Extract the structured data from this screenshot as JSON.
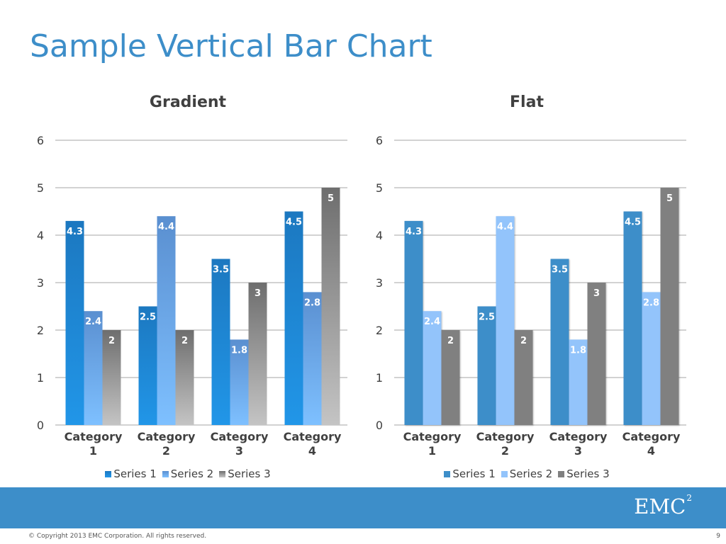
{
  "slide": {
    "title": "Sample Vertical Bar Chart",
    "copyright": "© Copyright 2013 EMC Corporation. All rights reserved.",
    "page_number": "9",
    "logo": {
      "text": "EMC",
      "superscript": "2"
    }
  },
  "colors": {
    "title": "#3d8ec9",
    "footer_band": "#3d8ec9",
    "gridline": "#a6a6a6",
    "axis_text": "#404040",
    "data_label": "#ffffff"
  },
  "chart_data": [
    {
      "type": "bar",
      "title": "Gradient",
      "style": "gradient",
      "categories": [
        [
          "Category",
          "1"
        ],
        [
          "Category",
          "2"
        ],
        [
          "Category",
          "3"
        ],
        [
          "Category",
          "4"
        ]
      ],
      "series": [
        {
          "name": "Series 1",
          "values": [
            4.3,
            2.5,
            3.5,
            4.5
          ],
          "color": "#1c78c0",
          "color_light": "#2196e8"
        },
        {
          "name": "Series 2",
          "values": [
            2.4,
            4.4,
            1.8,
            2.8
          ],
          "color": "#5a8fd0",
          "color_light": "#7ec0ff"
        },
        {
          "name": "Series 3",
          "values": [
            2,
            2,
            3,
            5
          ],
          "color": "#6e6e6e",
          "color_light": "#c4c4c4"
        }
      ],
      "ylim": [
        0,
        6
      ],
      "yticks": [
        0,
        1,
        2,
        3,
        4,
        5,
        6
      ],
      "grid": true,
      "legend": "bottom",
      "data_labels": true
    },
    {
      "type": "bar",
      "title": "Flat",
      "style": "flat",
      "categories": [
        [
          "Category",
          "1"
        ],
        [
          "Category",
          "2"
        ],
        [
          "Category",
          "3"
        ],
        [
          "Category",
          "4"
        ]
      ],
      "series": [
        {
          "name": "Series 1",
          "values": [
            4.3,
            2.5,
            3.5,
            4.5
          ],
          "color": "#3d8ec9"
        },
        {
          "name": "Series 2",
          "values": [
            2.4,
            4.4,
            1.8,
            2.8
          ],
          "color": "#93c4fb"
        },
        {
          "name": "Series 3",
          "values": [
            2,
            2,
            3,
            5
          ],
          "color": "#808080"
        }
      ],
      "ylim": [
        0,
        6
      ],
      "yticks": [
        0,
        1,
        2,
        3,
        4,
        5,
        6
      ],
      "grid": true,
      "legend": "bottom",
      "data_labels": true
    }
  ]
}
